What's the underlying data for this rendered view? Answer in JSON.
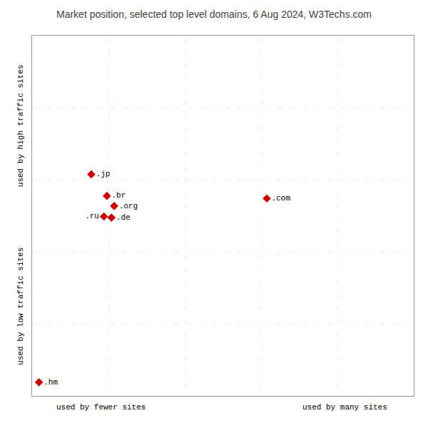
{
  "chart_data": {
    "type": "scatter",
    "title": "Market position, selected top level domains, 6 Aug 2024, W3Techs.com",
    "xlabels": [
      "used by fewer sites",
      "used by many sites"
    ],
    "ylabels": [
      "used by low traffic sites",
      "used by high traffic sites"
    ],
    "labels": [
      ".jp",
      ".br",
      ".org",
      ".ru",
      ".de",
      ".com",
      ".hm"
    ],
    "x": [
      0.155,
      0.196,
      0.215,
      0.188,
      0.208,
      0.615,
      0.018
    ],
    "values": [
      0.615,
      0.555,
      0.527,
      0.498,
      0.495,
      0.548,
      0.038
    ],
    "color": "#cc0000",
    "marker": "diamond",
    "xlim": [
      0,
      1
    ],
    "ylim": [
      0,
      1
    ],
    "xticks": [
      0,
      0.2,
      0.4,
      0.6,
      0.8,
      1
    ],
    "yticks": [
      0,
      0.2,
      0.4,
      0.6,
      0.8,
      1
    ],
    "grid": true,
    "tick_labels": false
  }
}
